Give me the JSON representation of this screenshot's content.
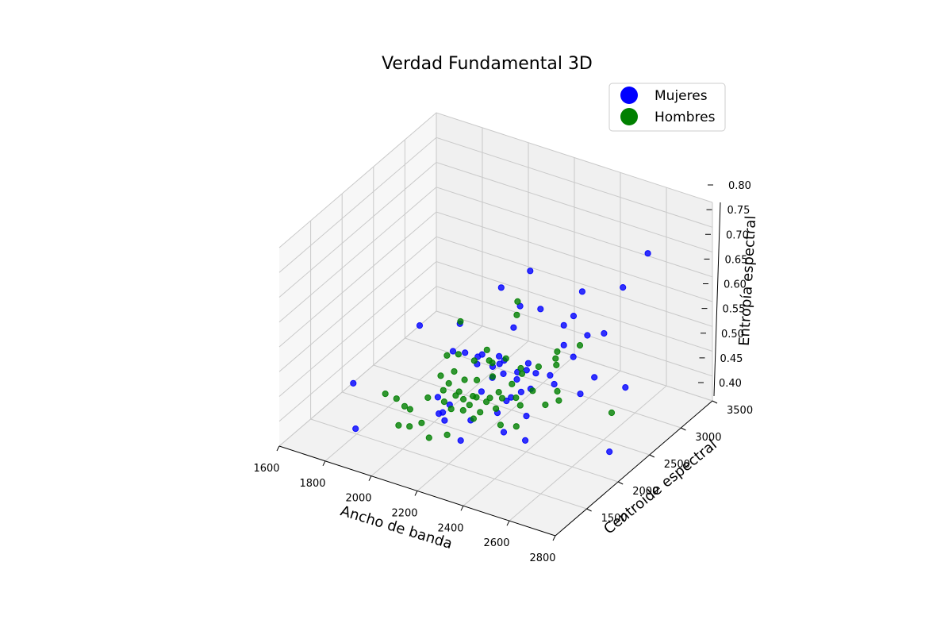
{
  "chart_data": {
    "type": "scatter",
    "title": "Verdad Fundamental 3D",
    "xlabel": "Ancho de banda",
    "ylabel": "Centroide espectral",
    "zlabel": "Entropía espectral",
    "xlim": [
      1600,
      2800
    ],
    "ylim": [
      1000,
      3500
    ],
    "zlim": [
      0.4,
      0.8
    ],
    "xticks": [
      "1600",
      "1800",
      "2000",
      "2200",
      "2400",
      "2600",
      "2800"
    ],
    "yticks": [
      "1500",
      "2000",
      "2500",
      "3000",
      "3500"
    ],
    "zticks": [
      "0.40",
      "0.45",
      "0.50",
      "0.55",
      "0.60",
      "0.65",
      "0.70",
      "0.75",
      "0.80"
    ],
    "grid": true,
    "legend_position": "top-right",
    "series": [
      {
        "name": "Mujeres",
        "color": "#0000ff",
        "points": [
          [
            2765,
            2600,
            0.79
          ],
          [
            1795,
            1500,
            0.41
          ],
          [
            1785,
            1500,
            0.5
          ],
          [
            2480,
            2600,
            0.67
          ],
          [
            2195,
            2050,
            0.56
          ],
          [
            2255,
            2100,
            0.56
          ],
          [
            2575,
            2900,
            0.66
          ],
          [
            2210,
            2600,
            0.6
          ],
          [
            2520,
            2800,
            0.57
          ],
          [
            2240,
            2650,
            0.67
          ],
          [
            2415,
            2700,
            0.6
          ],
          [
            2250,
            2350,
            0.59
          ],
          [
            2285,
            2650,
            0.6
          ],
          [
            2155,
            2500,
            0.64
          ],
          [
            1910,
            2100,
            0.57
          ],
          [
            2250,
            2200,
            0.54
          ],
          [
            2260,
            2150,
            0.52
          ],
          [
            2320,
            2300,
            0.52
          ],
          [
            2360,
            2300,
            0.52
          ],
          [
            2105,
            2300,
            0.5
          ],
          [
            2185,
            2250,
            0.49
          ],
          [
            2280,
            2200,
            0.47
          ],
          [
            2260,
            2200,
            0.46
          ],
          [
            2475,
            2700,
            0.57
          ],
          [
            2400,
            2600,
            0.55
          ],
          [
            2230,
            2200,
            0.53
          ],
          [
            2400,
            2600,
            0.59
          ],
          [
            2030,
            2300,
            0.57
          ],
          [
            2000,
            2300,
            0.51
          ],
          [
            2095,
            1900,
            0.46
          ],
          [
            2065,
            1900,
            0.44
          ],
          [
            2275,
            2000,
            0.46
          ],
          [
            2360,
            2150,
            0.45
          ],
          [
            2165,
            2150,
            0.47
          ],
          [
            2075,
            1800,
            0.45
          ],
          [
            2100,
            1800,
            0.44
          ],
          [
            2170,
            1800,
            0.41
          ],
          [
            2200,
            1850,
            0.45
          ],
          [
            2330,
            1900,
            0.44
          ],
          [
            2410,
            1950,
            0.43
          ],
          [
            2200,
            2200,
            0.52
          ],
          [
            2280,
            2300,
            0.51
          ],
          [
            2310,
            2250,
            0.48
          ],
          [
            2030,
            1950,
            0.46
          ],
          [
            2365,
            2200,
            0.5
          ],
          [
            2440,
            2300,
            0.51
          ],
          [
            2540,
            2350,
            0.5
          ],
          [
            2560,
            2500,
            0.52
          ],
          [
            2695,
            2500,
            0.52
          ],
          [
            2680,
            2300,
            0.41
          ],
          [
            2080,
            2200,
            0.53
          ],
          [
            2135,
            2200,
            0.53
          ],
          [
            2305,
            2200,
            0.51
          ],
          [
            2455,
            2550,
            0.54
          ],
          [
            2395,
            2400,
            0.51
          ],
          [
            2300,
            2400,
            0.52
          ]
        ]
      },
      {
        "name": "Hombres",
        "color": "#008000",
        "points": [
          [
            1900,
            1800,
            0.4
          ],
          [
            2060,
            2200,
            0.59
          ],
          [
            2250,
            2400,
            0.61
          ],
          [
            2240,
            2450,
            0.63
          ],
          [
            2185,
            2200,
            0.53
          ],
          [
            2175,
            2200,
            0.55
          ],
          [
            1870,
            1700,
            0.47
          ],
          [
            1905,
            1750,
            0.46
          ],
          [
            1940,
            1750,
            0.45
          ],
          [
            1975,
            1700,
            0.42
          ],
          [
            2000,
            1900,
            0.46
          ],
          [
            2040,
            2000,
            0.47
          ],
          [
            2080,
            2050,
            0.46
          ],
          [
            2140,
            2050,
            0.45
          ],
          [
            2200,
            2100,
            0.46
          ],
          [
            2255,
            2150,
            0.47
          ],
          [
            2320,
            2200,
            0.46
          ],
          [
            2015,
            2050,
            0.49
          ],
          [
            2060,
            2100,
            0.5
          ],
          [
            2105,
            2100,
            0.49
          ],
          [
            2145,
            2150,
            0.49
          ],
          [
            2200,
            2200,
            0.5
          ],
          [
            2270,
            2250,
            0.49
          ],
          [
            2015,
            2150,
            0.52
          ],
          [
            2065,
            2150,
            0.53
          ],
          [
            2120,
            2200,
            0.52
          ],
          [
            2185,
            2250,
            0.52
          ],
          [
            2230,
            2300,
            0.53
          ],
          [
            2295,
            2300,
            0.52
          ],
          [
            2395,
            2500,
            0.52
          ],
          [
            2405,
            2450,
            0.54
          ],
          [
            2470,
            2600,
            0.56
          ],
          [
            2635,
            2500,
            0.46
          ],
          [
            2330,
            2100,
            0.43
          ],
          [
            2415,
            2250,
            0.47
          ],
          [
            2460,
            2300,
            0.48
          ],
          [
            2030,
            2050,
            0.44
          ],
          [
            2115,
            1850,
            0.46
          ],
          [
            2155,
            2050,
            0.47
          ],
          [
            2185,
            1950,
            0.44
          ],
          [
            2215,
            2100,
            0.47
          ],
          [
            2255,
            2050,
            0.46
          ],
          [
            2275,
            2050,
            0.43
          ],
          [
            2100,
            2100,
            0.45
          ],
          [
            1950,
            1800,
            0.44
          ],
          [
            2000,
            1800,
            0.42
          ],
          [
            2060,
            1700,
            0.41
          ],
          [
            2125,
            1750,
            0.42
          ],
          [
            2170,
            2050,
            0.47
          ],
          [
            2315,
            2150,
            0.48
          ],
          [
            2360,
            2250,
            0.49
          ],
          [
            2200,
            2000,
            0.45
          ],
          [
            2140,
            1950,
            0.45
          ],
          [
            2240,
            2150,
            0.48
          ],
          [
            2300,
            2300,
            0.51
          ],
          [
            2345,
            2400,
            0.52
          ],
          [
            2385,
            2550,
            0.54
          ],
          [
            2050,
            2050,
            0.48
          ],
          [
            2095,
            2050,
            0.47
          ],
          [
            2440,
            2350,
            0.49
          ]
        ]
      }
    ]
  }
}
